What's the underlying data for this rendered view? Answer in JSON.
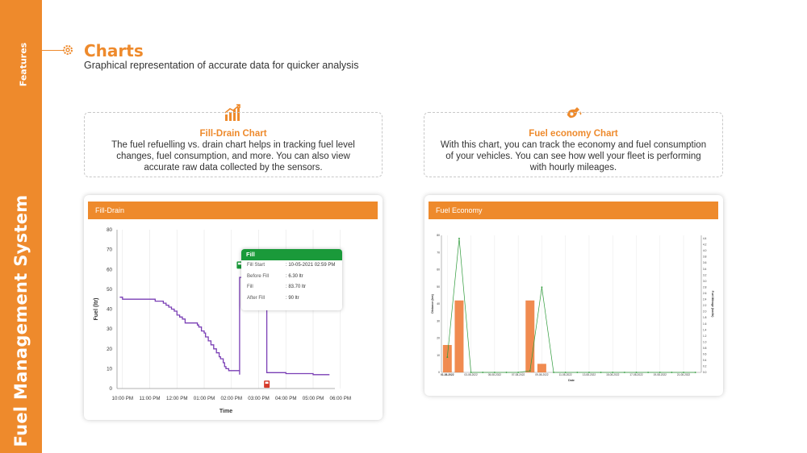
{
  "sidebar": {
    "top_label": "Features",
    "main_label": "Fuel Management System"
  },
  "header": {
    "title": "Charts",
    "subtitle": "Graphical representation of accurate data for quicker analysis"
  },
  "features": [
    {
      "title": "Fill-Drain Chart",
      "icon": "bar-chart-icon",
      "text": "The fuel refuelling vs. drain chart helps in tracking fuel level changes, fuel consumption, and more. You can also view accurate raw data collected by the sensors."
    },
    {
      "title": "Fuel economy Chart",
      "icon": "fuel-nozzle-icon",
      "text": "With this chart, you can track the economy and fuel consumption of your vehicles. You can see how well your fleet is performing with hourly mileages."
    }
  ],
  "colors": {
    "accent": "#ee8a2c",
    "line": "#7a3fb5",
    "fill_green": "#1a9a3a",
    "drain_red": "#d63a2a",
    "bar": "#ee7e3d",
    "economy_line": "#2e9a3a"
  },
  "fill_drain": {
    "header": "Fill-Drain",
    "tooltip": {
      "title": "Fill",
      "rows": [
        {
          "k": "Fill Start",
          "v": ": 10-05-2021 02:59 PM"
        },
        {
          "k": "Before Fill",
          "v": ": 6.30 ltr"
        },
        {
          "k": "Fill",
          "v": ": 83.70 ltr"
        },
        {
          "k": "After Fill",
          "v": ": 90 ltr"
        }
      ]
    }
  },
  "fuel_economy": {
    "header": "Fuel Economy"
  },
  "chart_data": [
    {
      "type": "line",
      "xlabel": "Time",
      "ylabel": "Fuel (ltr)",
      "ylim": [
        0,
        80
      ],
      "yticks": [
        0,
        10,
        20,
        30,
        40,
        50,
        60,
        70,
        80
      ],
      "xticks": [
        "10:00 PM",
        "11:00 PM",
        "12:00 PM",
        "01:00 PM",
        "02:00 PM",
        "03:00 PM",
        "04:00 PM",
        "05:00 PM",
        "06:00 PM"
      ],
      "grid": "vertical",
      "series": [
        {
          "x": [
            -0.1,
            0.0,
            1.2,
            1.2,
            1.5,
            1.6,
            1.7,
            1.8,
            1.9,
            2.0,
            2.1,
            2.2,
            2.3,
            2.55,
            2.75,
            2.8,
            2.9,
            3.0,
            3.05,
            3.15,
            3.25,
            3.35,
            3.45,
            3.55,
            3.6,
            3.7,
            3.75,
            3.8,
            3.9,
            4.3,
            4.3,
            4.45,
            4.6,
            4.8,
            5.0,
            5.1,
            5.25,
            5.3,
            5.3,
            6.0,
            7.0,
            7.6
          ],
          "y": [
            46,
            45,
            45,
            44,
            43,
            42,
            41,
            40,
            39,
            37,
            36,
            35,
            33,
            33,
            32,
            31,
            29,
            28,
            26,
            24,
            22,
            20,
            18,
            16,
            15,
            13,
            11,
            10,
            9,
            7,
            56,
            54,
            53,
            53,
            51,
            50,
            49,
            48,
            8,
            7.5,
            7,
            7
          ]
        }
      ],
      "events": [
        {
          "kind": "fill",
          "x": 4.3,
          "y": 62
        },
        {
          "kind": "drain",
          "x": 5.3,
          "y": 2
        }
      ]
    },
    {
      "type": "bar",
      "xlabel": "Date",
      "ylabel": "Distance (km)",
      "y2label": "Fuel Mileage (km/ltr)",
      "ylim": [
        0,
        80
      ],
      "yticks": [
        0,
        10,
        20,
        30,
        40,
        50,
        60,
        70,
        80
      ],
      "y2lim": [
        0,
        4.5
      ],
      "y2ticks": [
        "0.0",
        "0.2",
        "0.4",
        "0.6",
        "0.8",
        "1.0",
        "1.2",
        "1.4",
        "1.6",
        "1.8",
        "2.0",
        "2.2",
        "2.4",
        "2.6",
        "2.8",
        "3.0",
        "3.2",
        "3.4",
        "3.6",
        "3.8",
        "4.0",
        "4.2",
        "4.4"
      ],
      "xticks": [
        "01-08-2022",
        "03-08-2022",
        "05-08-2022",
        "07-08-2022",
        "09-08-2022",
        "11-08-2022",
        "13-08-2022",
        "15-08-2022",
        "17-08-2022",
        "19-08-2022",
        "21-08-2022"
      ],
      "days": 22,
      "bars": [
        {
          "day": 0,
          "value": 16
        },
        {
          "day": 1,
          "value": 42
        },
        {
          "day": 7,
          "value": 42
        },
        {
          "day": 8,
          "value": 5
        }
      ],
      "line": [
        0.5,
        4.4,
        0,
        0,
        0,
        0,
        0,
        0.05,
        2.8,
        0,
        0,
        0,
        0,
        0,
        0,
        0,
        0,
        0,
        0,
        0,
        0,
        0
      ]
    }
  ]
}
